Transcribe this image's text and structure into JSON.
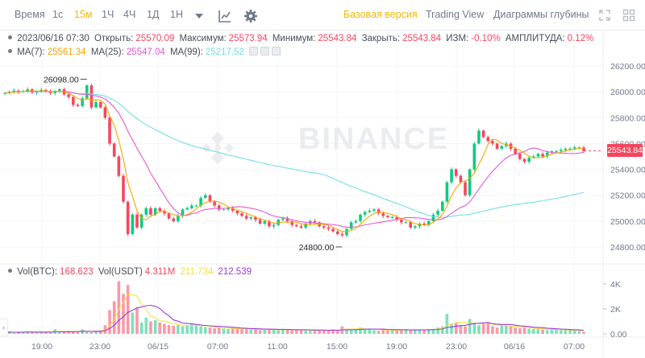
{
  "toolbar": {
    "time_label": "Время",
    "intervals": [
      "1с",
      "15м",
      "1Ч",
      "4Ч",
      "1Д",
      "1Н"
    ],
    "active_interval": "15м",
    "basic_label": "Базовая версия",
    "tradingview_label": "Trading View",
    "depth_label": "Диаграммы глубины"
  },
  "ohlc": {
    "datetime": "2023/06/16 07:30",
    "open_label": "Открыть:",
    "open": "25570.09",
    "high_label": "Максимум:",
    "high": "25573.94",
    "low_label": "Минимум:",
    "low": "25543.84",
    "close_label": "Закрыть:",
    "close": "25543.84",
    "change_label": "ИЗМ:",
    "change": "-0.10%",
    "amplitude_label": "АМПЛИТУДА:",
    "amplitude": "0.12%"
  },
  "ma": {
    "ma7_label": "MA(7):",
    "ma7": "25561.34",
    "ma25_label": "MA(25):",
    "ma25": "25547.04",
    "ma99_label": "MA(99):",
    "ma99": "25217.52"
  },
  "volume": {
    "btc_label": "Vol(BTC):",
    "btc": "168.623",
    "usdt_label": "Vol(USDT)",
    "usdt": "4.311M",
    "usdt_ma1": "211.734",
    "usdt_ma2": "212.539"
  },
  "watermark": "BINANCE",
  "annotations": {
    "high_marker": "26098.00",
    "low_marker": "24800.00"
  },
  "last_price": "25543.84",
  "price_axis": [
    "26200.00",
    "26000.00",
    "25800.00",
    "25600.00",
    "25400.00",
    "25200.00",
    "25000.00",
    "24800.00"
  ],
  "volume_axis": [
    "4K",
    "2K",
    "0.00"
  ],
  "time_axis": [
    "19:00",
    "23:00",
    "06/15",
    "07:00",
    "11:00",
    "15:00",
    "19:00",
    "23:00",
    "06/16",
    "07:00"
  ],
  "colors": {
    "up": "#0ecb81",
    "down": "#f6465d",
    "ma7": "#f7a600",
    "ma25": "#e557d8",
    "ma99": "#73dee6",
    "accent": "#f0b90b"
  },
  "chart_data": {
    "type": "candlestick",
    "price_range": [
      24700,
      26300
    ],
    "volume_range": [
      0,
      4500
    ],
    "closes": [
      25990,
      26000,
      26010,
      26000,
      26005,
      26020,
      25995,
      26000,
      26015,
      26005,
      25990,
      26000,
      26020,
      25980,
      25960,
      25900,
      25890,
      25950,
      26050,
      25880,
      25920,
      25880,
      25800,
      25600,
      25500,
      25350,
      25150,
      24900,
      25050,
      24950,
      25050,
      25100,
      25050,
      25100,
      25080,
      25060,
      25020,
      25000,
      25040,
      25090,
      25100,
      25120,
      25120,
      25180,
      25200,
      25150,
      25120,
      25090,
      25090,
      25100,
      25080,
      25060,
      25040,
      25020,
      25030,
      25010,
      24980,
      25000,
      24960,
      24970,
      25010,
      25020,
      25000,
      24970,
      24960,
      24950,
      24980,
      25000,
      24990,
      24960,
      24950,
      24940,
      24920,
      24900,
      24890,
      24940,
      24990,
      25000,
      25050,
      25070,
      25080,
      25090,
      25060,
      25040,
      25030,
      25030,
      25010,
      24990,
      24990,
      24950,
      24960,
      24980,
      24970,
      25000,
      25050,
      25080,
      25150,
      25300,
      25400,
      25350,
      25300,
      25200,
      25400,
      25600,
      25700,
      25650,
      25620,
      25600,
      25560,
      25580,
      25600,
      25560,
      25520,
      25480,
      25460,
      25490,
      25500,
      25520,
      25500,
      25530,
      25540,
      25540,
      25550,
      25560,
      25560,
      25570,
      25570,
      25543
    ],
    "volumes": [
      120,
      180,
      90,
      140,
      160,
      200,
      130,
      110,
      160,
      120,
      140,
      380,
      120,
      150,
      200,
      180,
      230,
      360,
      140,
      120,
      200,
      300,
      700,
      1900,
      2600,
      4200,
      3200,
      3900,
      1700,
      2100,
      900,
      1300,
      1000,
      1100,
      900,
      800,
      700,
      650,
      700,
      600,
      700,
      800,
      650,
      600,
      550,
      500,
      450,
      500,
      420,
      380,
      420,
      450,
      380,
      400,
      350,
      380,
      300,
      350,
      380,
      320,
      300,
      400,
      320,
      280,
      300,
      350,
      250,
      300,
      280,
      260,
      300,
      270,
      350,
      250,
      600,
      400,
      300,
      350,
      500,
      400,
      380,
      300,
      250,
      300,
      350,
      270,
      300,
      320,
      380,
      280,
      340,
      300,
      350,
      380,
      400,
      500,
      600,
      1600,
      800,
      900,
      700,
      600,
      1200,
      900,
      700,
      800,
      900,
      600,
      500,
      700,
      650,
      600,
      500,
      450,
      500,
      420,
      380,
      400,
      350,
      300,
      380,
      350,
      300,
      280,
      300,
      250,
      220,
      168
    ],
    "ma_series": [
      {
        "name": "MA(7)",
        "color": "#f7a600"
      },
      {
        "name": "MA(25)",
        "color": "#e557d8"
      },
      {
        "name": "MA(99)",
        "color": "#73dee6"
      }
    ]
  }
}
